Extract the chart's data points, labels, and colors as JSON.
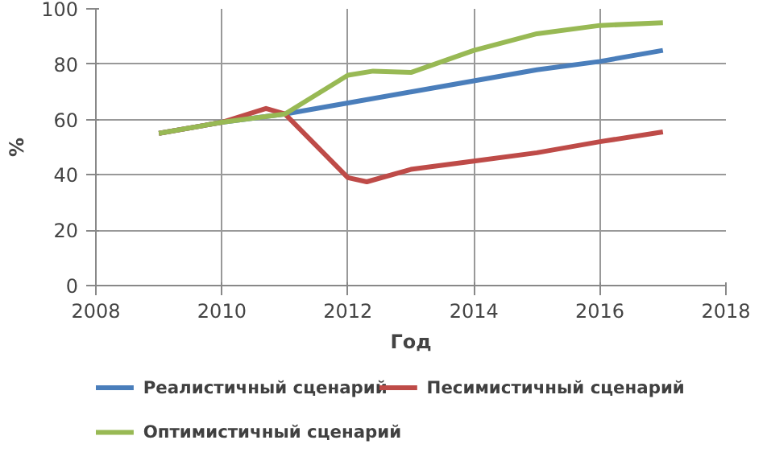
{
  "chart_data": {
    "type": "line",
    "xlabel": "Год",
    "ylabel": "%",
    "xlim": [
      2008,
      2018
    ],
    "xticks": [
      2008,
      2010,
      2012,
      2014,
      2016,
      2018
    ],
    "ylim": [
      0,
      100
    ],
    "yticks": [
      0,
      20,
      40,
      60,
      80,
      100
    ],
    "grid": true,
    "legend": "bottom",
    "series": [
      {
        "name": "Реалистичный сценарий",
        "color": "#4a7ebb",
        "x": [
          2009,
          2010,
          2011,
          2012,
          2013,
          2014,
          2015,
          2016,
          2017
        ],
        "values": [
          55,
          59,
          62,
          66,
          70,
          74,
          78,
          81,
          85
        ]
      },
      {
        "name": "Песимистичный сценарий",
        "color": "#be4b48",
        "x": [
          2009,
          2010,
          2010.7,
          2011,
          2012,
          2012.3,
          2013,
          2014,
          2015,
          2016,
          2017
        ],
        "values": [
          55,
          59,
          64,
          62,
          39,
          37.5,
          42,
          45,
          48,
          52,
          55.5
        ]
      },
      {
        "name": "Оптимистичный сценарий",
        "color": "#98b954",
        "x": [
          2009,
          2010,
          2011,
          2012,
          2012.4,
          2013,
          2014,
          2015,
          2016,
          2017
        ],
        "values": [
          55,
          59,
          62,
          76,
          77.5,
          77,
          85,
          91,
          94,
          95
        ]
      }
    ]
  }
}
